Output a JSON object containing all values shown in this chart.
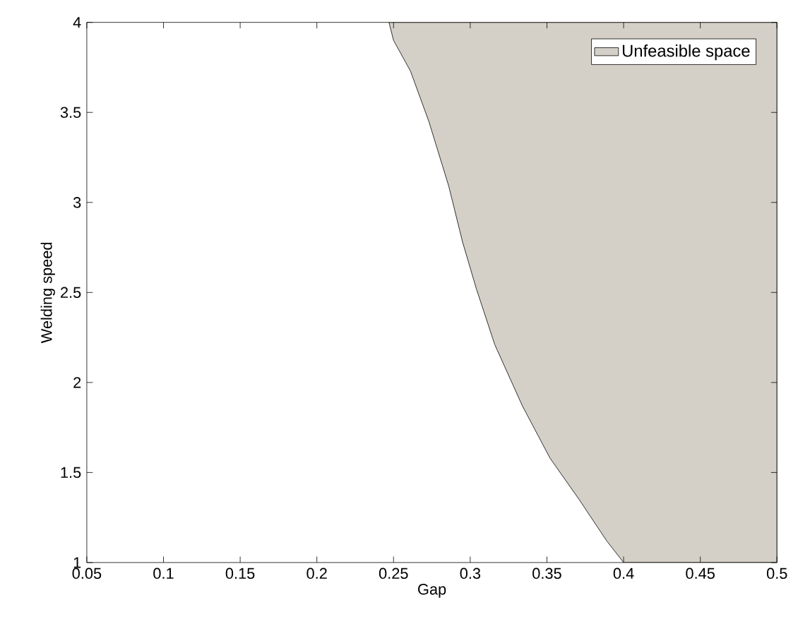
{
  "chart_data": {
    "type": "area",
    "xlabel": "Gap",
    "ylabel": "Welding speed",
    "xlim": [
      0.05,
      0.5
    ],
    "ylim": [
      1,
      4
    ],
    "xticks": [
      0.05,
      0.1,
      0.15,
      0.2,
      0.25,
      0.3,
      0.35,
      0.4,
      0.45,
      0.5
    ],
    "yticks": [
      1,
      1.5,
      2,
      2.5,
      3,
      3.5,
      4
    ],
    "legend": "top right",
    "series": [
      {
        "name": "Unfeasible space",
        "color": "#d4d0c8",
        "x": [
          0.247,
          0.25,
          0.261,
          0.273,
          0.286,
          0.295,
          0.304,
          0.316,
          0.334,
          0.352,
          0.371,
          0.389,
          0.4,
          0.5,
          0.5
        ],
        "values": [
          4,
          3.9,
          3.73,
          3.45,
          3.09,
          2.78,
          2.52,
          2.21,
          1.87,
          1.58,
          1.35,
          1.12,
          1,
          1,
          4
        ]
      }
    ]
  }
}
